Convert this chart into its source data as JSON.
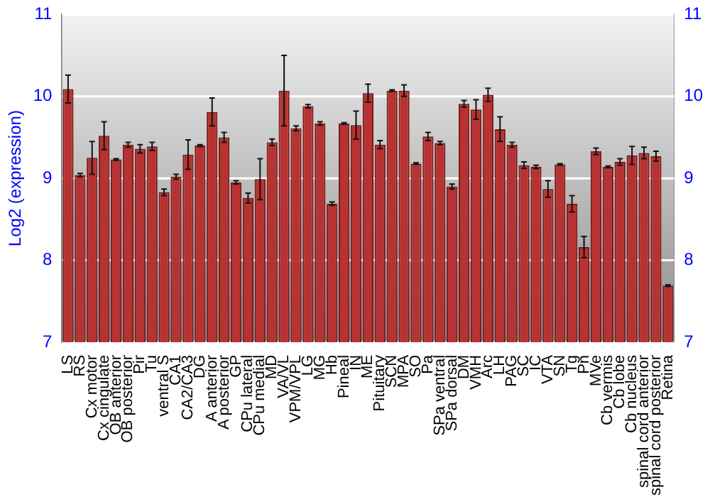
{
  "chart_data": {
    "type": "bar",
    "ylabel": "Log2 (expression)",
    "categories": [
      "LS",
      "RS",
      "Cx motor",
      "Cx cingulate",
      "OB anterior",
      "OB posterior",
      "Pir",
      "Tu",
      "ventral S",
      "CA1",
      "CA2/CA3",
      "DG",
      "A anterior",
      "A posterior",
      "GP",
      "CPu lateral",
      "CPu medial",
      "MD",
      "VA/VL",
      "VPM/VPL",
      "LG",
      "MG",
      "Hb",
      "Pineal",
      "IN",
      "ME",
      "Pituitary",
      "SCN",
      "MPA",
      "SO",
      "Pa",
      "SPa ventral",
      "SPa dorsal",
      "DM",
      "VMH",
      "Arc",
      "LH",
      "PAG",
      "SC",
      "IC",
      "VTA",
      "SN",
      "Tg",
      "Pn",
      "MVe",
      "Cb vermis",
      "Cb lobe",
      "Cb nucleus",
      "spinal cord anterior",
      "spinal cord posterior",
      "Retina"
    ],
    "values": [
      10.09,
      9.04,
      9.25,
      9.52,
      9.23,
      9.41,
      9.36,
      9.39,
      8.83,
      9.02,
      9.29,
      9.4,
      9.81,
      9.5,
      8.95,
      8.76,
      8.99,
      9.44,
      10.07,
      9.61,
      9.88,
      9.67,
      8.69,
      9.67,
      9.65,
      10.04,
      9.41,
      10.07,
      10.07,
      9.18,
      9.51,
      9.43,
      8.9,
      9.91,
      9.84,
      10.02,
      9.6,
      9.41,
      9.16,
      9.14,
      8.87,
      9.17,
      8.69,
      8.16,
      9.33,
      9.14,
      9.2,
      9.28,
      9.31,
      9.27,
      7.69
    ],
    "errors": [
      0.17,
      0.02,
      0.2,
      0.17,
      0.01,
      0.03,
      0.05,
      0.05,
      0.04,
      0.03,
      0.18,
      0.01,
      0.17,
      0.06,
      0.02,
      0.06,
      0.25,
      0.04,
      0.43,
      0.03,
      0.02,
      0.02,
      0.02,
      0.01,
      0.17,
      0.11,
      0.05,
      0.01,
      0.07,
      0.01,
      0.05,
      0.02,
      0.03,
      0.04,
      0.12,
      0.08,
      0.15,
      0.03,
      0.04,
      0.02,
      0.1,
      0.01,
      0.1,
      0.13,
      0.04,
      0.01,
      0.04,
      0.11,
      0.07,
      0.06,
      0.01
    ],
    "color": "#b83232",
    "ylim": [
      7,
      11
    ],
    "yticks": [
      7,
      8,
      9,
      10,
      11
    ],
    "y2lim": [
      7,
      11
    ],
    "y2ticks": [
      7,
      8,
      9,
      10,
      11
    ],
    "grid": "y",
    "legend": false
  }
}
